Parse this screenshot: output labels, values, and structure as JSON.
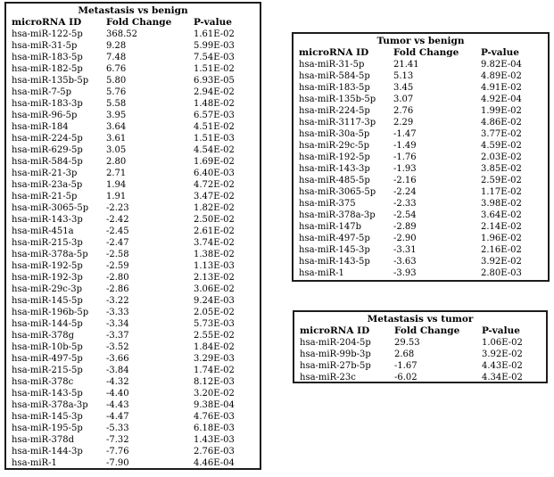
{
  "tables": [
    {
      "id": "metastasis-vs-benign",
      "title": "Metastasis vs benign",
      "columns": [
        "microRNA ID",
        "Fold Change",
        "P-value"
      ],
      "rows": [
        [
          "hsa-miR-122-5p",
          "368.52",
          "1.61E-02"
        ],
        [
          "hsa-miR-31-5p",
          "9.28",
          "5.99E-03"
        ],
        [
          "hsa-miR-183-5p",
          "7.48",
          "7.54E-03"
        ],
        [
          "hsa-miR-182-5p",
          "6.76",
          "1.51E-02"
        ],
        [
          "hsa-miR-135b-5p",
          "5.80",
          "6.93E-05"
        ],
        [
          "hsa-miR-7-5p",
          "5.76",
          "2.94E-02"
        ],
        [
          "hsa-miR-183-3p",
          "5.58",
          "1.48E-02"
        ],
        [
          "hsa-miR-96-5p",
          "3.95",
          "6.57E-03"
        ],
        [
          "hsa-miR-184",
          "3.64",
          "4.51E-02"
        ],
        [
          "hsa-miR-224-5p",
          "3.61",
          "1.51E-03"
        ],
        [
          "hsa-miR-629-5p",
          "3.05",
          "4.54E-02"
        ],
        [
          "hsa-miR-584-5p",
          "2.80",
          "1.69E-02"
        ],
        [
          "hsa-miR-21-3p",
          "2.71",
          "6.40E-03"
        ],
        [
          "hsa-miR-23a-5p",
          "1.94",
          "4.72E-02"
        ],
        [
          "hsa-miR-21-5p",
          "1.91",
          "3.47E-02"
        ],
        [
          "hsa-miR-3065-5p",
          "-2.23",
          "1.82E-02"
        ],
        [
          "hsa-miR-143-3p",
          "-2.42",
          "2.50E-02"
        ],
        [
          "hsa-miR-451a",
          "-2.45",
          "2.61E-02"
        ],
        [
          "hsa-miR-215-3p",
          "-2.47",
          "3.74E-02"
        ],
        [
          "hsa-miR-378a-5p",
          "-2.58",
          "1.38E-02"
        ],
        [
          "hsa-miR-192-5p",
          "-2.59",
          "1.13E-03"
        ],
        [
          "hsa-miR-192-3p",
          "-2.80",
          "2.13E-02"
        ],
        [
          "hsa-miR-29c-3p",
          "-2.86",
          "3.06E-02"
        ],
        [
          "hsa-miR-145-5p",
          "-3.22",
          "9.24E-03"
        ],
        [
          "hsa-miR-196b-5p",
          "-3.33",
          "2.05E-02"
        ],
        [
          "hsa-miR-144-5p",
          "-3.34",
          "5.73E-03"
        ],
        [
          "hsa-miR-378g",
          "-3.37",
          "2.55E-02"
        ],
        [
          "hsa-miR-10b-5p",
          "-3.52",
          "1.84E-02"
        ],
        [
          "hsa-miR-497-5p",
          "-3.66",
          "3.29E-03"
        ],
        [
          "hsa-miR-215-5p",
          "-3.84",
          "1.74E-02"
        ],
        [
          "hsa-miR-378c",
          "-4.32",
          "8.12E-03"
        ],
        [
          "hsa-miR-143-5p",
          "-4.40",
          "3.20E-02"
        ],
        [
          "hsa-miR-378a-3p",
          "-4.43",
          "9.38E-04"
        ],
        [
          "hsa-miR-145-3p",
          "-4.47",
          "4.76E-03"
        ],
        [
          "hsa-miR-195-5p",
          "-5.33",
          "6.18E-03"
        ],
        [
          "hsa-miR-378d",
          "-7.32",
          "1.43E-03"
        ],
        [
          "hsa-miR-144-3p",
          "-7.76",
          "2.76E-03"
        ],
        [
          "hsa-miR-1",
          "-7.90",
          "4.46E-04"
        ]
      ]
    },
    {
      "id": "tumor-vs-benign",
      "title": "Tumor vs benign",
      "columns": [
        "microRNA ID",
        "Fold Change",
        "P-value"
      ],
      "rows": [
        [
          "hsa-miR-31-5p",
          "21.41",
          "9.82E-04"
        ],
        [
          "hsa-miR-584-5p",
          "5.13",
          "4.89E-02"
        ],
        [
          "hsa-miR-183-5p",
          "3.45",
          "4.91E-02"
        ],
        [
          "hsa-miR-135b-5p",
          "3.07",
          "4.92E-04"
        ],
        [
          "hsa-miR-224-5p",
          "2.76",
          "1.99E-02"
        ],
        [
          "hsa-miR-3117-3p",
          "2.29",
          "4.86E-02"
        ],
        [
          "hsa-miR-30a-5p",
          "-1.47",
          "3.77E-02"
        ],
        [
          "hsa-miR-29c-5p",
          "-1.49",
          "4.59E-02"
        ],
        [
          "hsa-miR-192-5p",
          "-1.76",
          "2.03E-02"
        ],
        [
          "hsa-miR-143-3p",
          "-1.93",
          "3.85E-02"
        ],
        [
          "hsa-miR-485-5p",
          "-2.16",
          "2.59E-02"
        ],
        [
          "hsa-miR-3065-5p",
          "-2.24",
          "1.17E-02"
        ],
        [
          "hsa-miR-375",
          "-2.33",
          "3.98E-02"
        ],
        [
          "hsa-miR-378a-3p",
          "-2.54",
          "3.64E-02"
        ],
        [
          "hsa-miR-147b",
          "-2.89",
          "2.14E-02"
        ],
        [
          "hsa-miR-497-5p",
          "-2.90",
          "1.96E-02"
        ],
        [
          "hsa-miR-145-3p",
          "-3.31",
          "2.16E-02"
        ],
        [
          "hsa-miR-143-5p",
          "-3.63",
          "3.92E-02"
        ],
        [
          "hsa-miR-1",
          "-3.93",
          "2.80E-03"
        ]
      ]
    },
    {
      "id": "metastasis-vs-tumor",
      "title": "Metastasis vs tumor",
      "columns": [
        "microRNA ID",
        "Fold Change",
        "P-value"
      ],
      "rows": [
        [
          "hsa-miR-204-5p",
          "29.53",
          "1.06E-02"
        ],
        [
          "hsa-miR-99b-3p",
          "2.68",
          "3.92E-02"
        ],
        [
          "hsa-miR-27b-5p",
          "-1.67",
          "4.43E-02"
        ],
        [
          "hsa-miR-23c",
          "-6.02",
          "4.34E-02"
        ]
      ]
    }
  ]
}
